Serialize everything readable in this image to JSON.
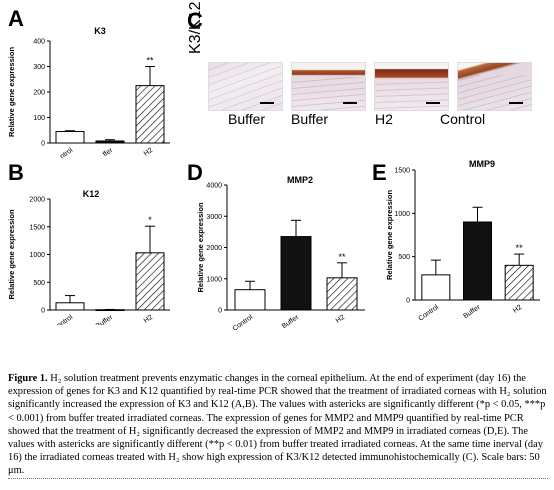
{
  "panels": {
    "A": "A",
    "B": "B",
    "C": "C",
    "D": "D",
    "E": "E"
  },
  "histology": {
    "side_label": "K3/K12",
    "labels": [
      "Buffer",
      "Buffer",
      "H2",
      "Control"
    ]
  },
  "chart_data": [
    {
      "id": "A",
      "type": "bar",
      "title": "K3",
      "xlabel": "",
      "ylabel": "Relative gene expression",
      "categories": [
        "Control",
        "Buffer",
        "H2"
      ],
      "tick_labels_shown": [
        "ntrol",
        "ffer",
        "H2"
      ],
      "values": [
        45,
        8,
        225
      ],
      "errors": [
        3,
        5,
        75
      ],
      "ylim": [
        0,
        400
      ],
      "yticks": [
        0,
        100,
        200,
        300,
        400
      ],
      "significance": [
        "",
        "",
        "**"
      ],
      "grid": false
    },
    {
      "id": "B",
      "type": "bar",
      "title": "K12",
      "xlabel": "",
      "ylabel": "Relative gene expression",
      "categories": [
        "Control",
        "Buffer",
        "H2"
      ],
      "values": [
        130,
        5,
        1030
      ],
      "errors": [
        130,
        5,
        480
      ],
      "ylim": [
        0,
        2000
      ],
      "yticks": [
        0,
        500,
        1000,
        1500,
        2000
      ],
      "significance": [
        "",
        "",
        "*"
      ],
      "grid": false
    },
    {
      "id": "D",
      "type": "bar",
      "title": "MMP2",
      "xlabel": "",
      "ylabel": "Relative gene expression",
      "categories": [
        "Control",
        "Buffer",
        "H2"
      ],
      "values": [
        650,
        2350,
        1030
      ],
      "errors": [
        270,
        520,
        480
      ],
      "ylim": [
        0,
        4000
      ],
      "yticks": [
        0,
        1000,
        2000,
        3000,
        4000
      ],
      "significance": [
        "",
        "",
        "**"
      ],
      "grid": false
    },
    {
      "id": "E",
      "type": "bar",
      "title": "MMP9",
      "xlabel": "",
      "ylabel": "Relative gene expression",
      "categories": [
        "Control",
        "Buffer",
        "H2"
      ],
      "values": [
        290,
        900,
        400
      ],
      "errors": [
        170,
        170,
        130
      ],
      "ylim": [
        0,
        1500
      ],
      "yticks": [
        0,
        500,
        1000,
        1500
      ],
      "significance": [
        "",
        "",
        "**"
      ],
      "grid": false
    }
  ],
  "caption": {
    "label": "Figure 1.",
    "text": "H₂ solution treatment prevents enzymatic changes in the corneal epithelium. At the end of experiment (day 16) the expression of genes for K3 and K12 quantified by real-time PCR showed that the treatment of irradiated corneas with H₂ solution significantly increased the expression of K3 and K12 (A,B). The values with astericks are significantly different (*p < 0.05, ***p < 0.001) from buffer treated irradiated corneas. The expression of genes for MMP2 and MMP9 quantified by real-time PCR showed that the treatment of H₂ significantly decreased the expression of MMP2 and MMP9 in irradiated corneas (D,E). The values with astericks are significantly different (**p < 0.01) from buffer treated irradiated corneas. At the same time inerval (day 16) the irradiated corneas treated with H₂ show high expression of K3/K12 detected immunohistochemically (C). Scale bars: 50 μm."
  }
}
